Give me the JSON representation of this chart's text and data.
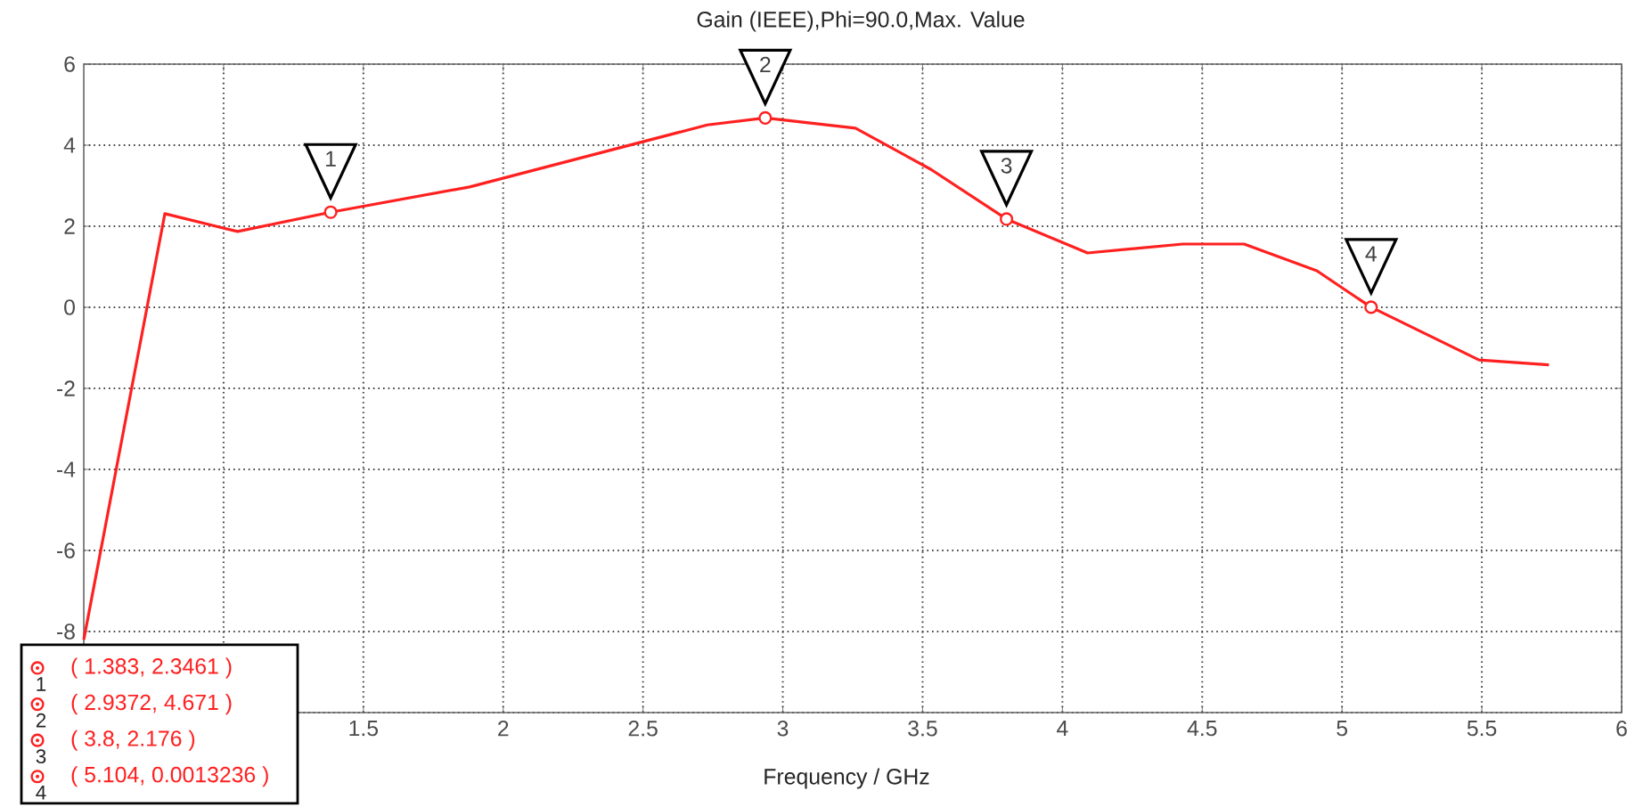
{
  "chart_data": {
    "type": "line",
    "title": "Gain (IEEE),Phi=90.0,Max. Value",
    "xlabel": "Frequency / GHz",
    "x": [
      0.5,
      0.79,
      1.05,
      1.383,
      1.88,
      2.73,
      2.9372,
      3.26,
      3.53,
      3.8,
      4.09,
      4.43,
      4.65,
      4.91,
      5.104,
      5.49,
      5.74
    ],
    "series": [
      {
        "color": "#ff2020",
        "values": [
          -8.2,
          2.31,
          1.87,
          2.3461,
          2.97,
          4.5,
          4.671,
          4.42,
          3.4,
          2.176,
          1.34,
          1.56,
          1.56,
          0.9,
          0.0013236,
          -1.3,
          -1.42
        ]
      }
    ],
    "marker": "none",
    "grid": true,
    "xlim": [
      0.5,
      6
    ],
    "ylim": [
      -10,
      6
    ],
    "xticks": [
      {
        "value": 1,
        "label": null
      },
      1.5,
      2,
      2.5,
      3,
      3.5,
      4,
      4.5,
      5,
      5.5,
      6
    ],
    "yticks": [
      {
        "value": -10,
        "label": null
      },
      -8,
      -6,
      -4,
      -2,
      0,
      2,
      4,
      6
    ],
    "annotations": [
      {
        "text": "1",
        "x": 1.383,
        "y": 2.3461
      },
      {
        "text": "2",
        "x": 2.9372,
        "y": 4.671
      },
      {
        "text": "3",
        "x": 3.8,
        "y": 2.176
      },
      {
        "text": "4",
        "x": 5.104,
        "y": 0.0013236
      },
      "( 1.383, 2.3461 )",
      "( 2.9372, 4.671 )",
      "( 3.8, 2.176 )",
      "( 5.104, 0.0013236 )"
    ]
  }
}
